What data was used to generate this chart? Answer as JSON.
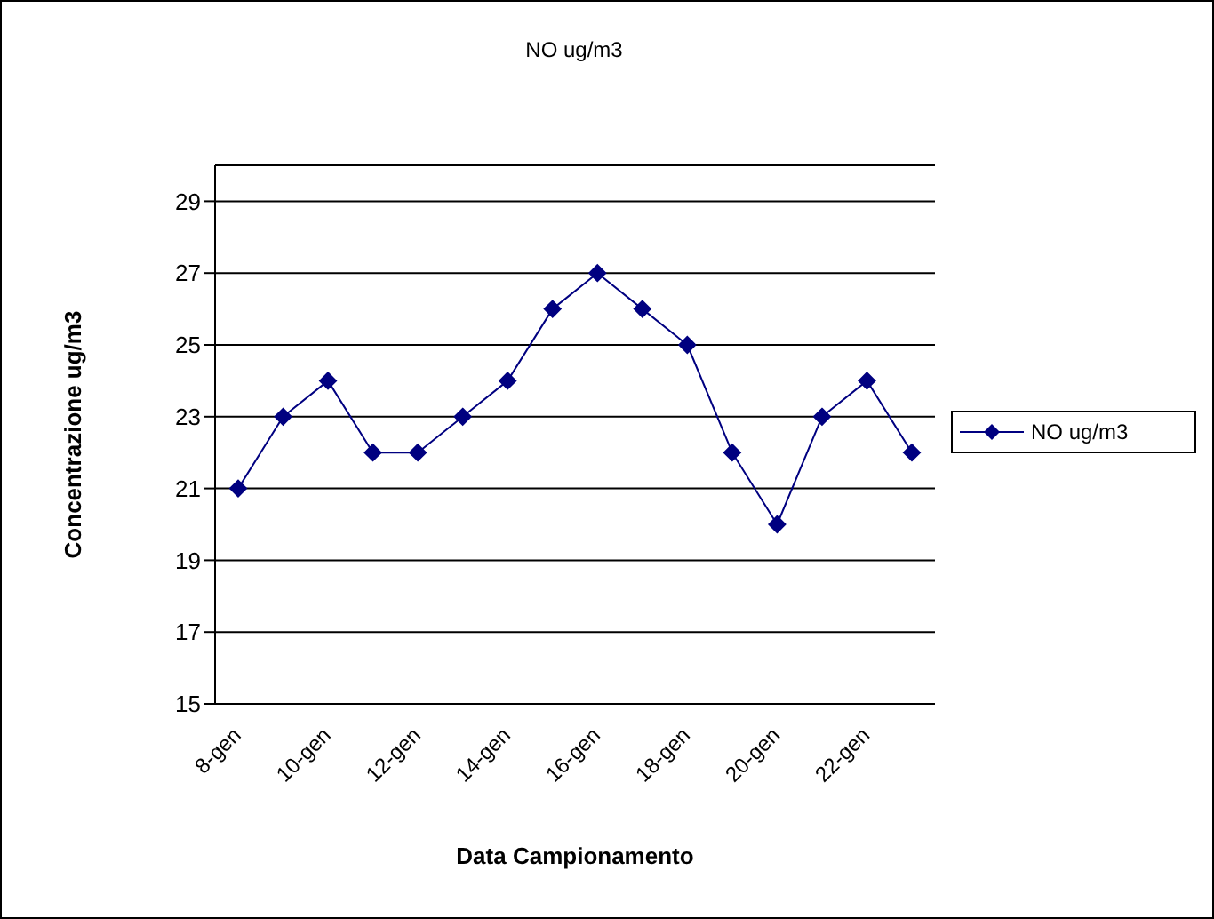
{
  "chart_data": {
    "type": "line",
    "title": "NO ug/m3",
    "xlabel": "Data Campionamento",
    "ylabel": "Concentrazione ug/m3",
    "categories": [
      "8-gen",
      null,
      "10-gen",
      null,
      "12-gen",
      null,
      "14-gen",
      null,
      "16-gen",
      null,
      "18-gen",
      null,
      "20-gen",
      null,
      "22-gen",
      null
    ],
    "series": [
      {
        "name": "NO ug/m3",
        "color": "#000080",
        "values": [
          21,
          23,
          24,
          22,
          22,
          23,
          24,
          26,
          27,
          26,
          25,
          22,
          20,
          23,
          24,
          22
        ]
      }
    ],
    "ylim": [
      15,
      30
    ],
    "yticks": [
      15,
      17,
      19,
      21,
      23,
      25,
      27,
      29
    ],
    "grid": "y",
    "legend": "right",
    "marker": "diamond",
    "line_style": "solid"
  }
}
